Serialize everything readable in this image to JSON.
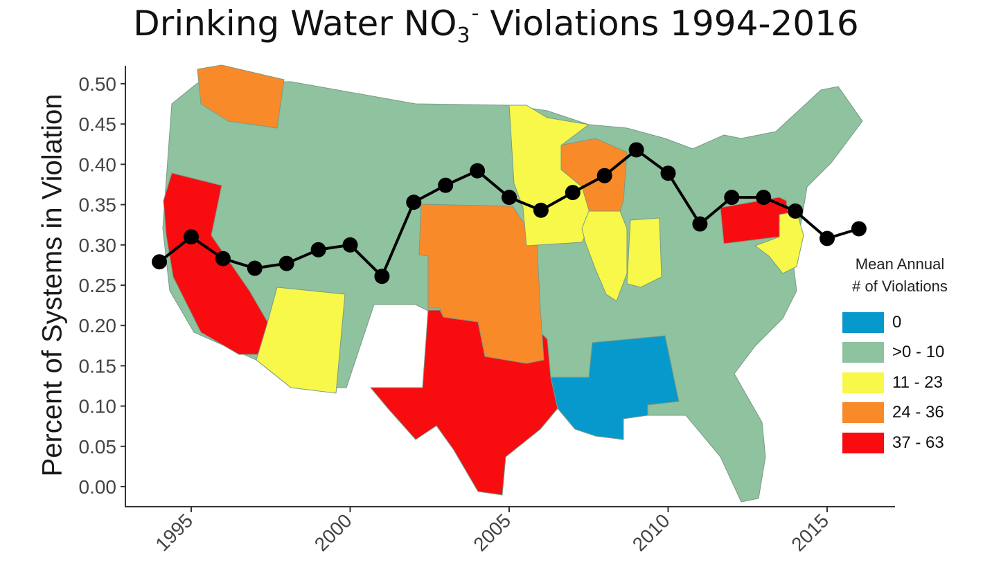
{
  "title": {
    "main": "Drinking Water NO",
    "sub": "3",
    "sup": "-",
    "rest": " Violations 1994-2016"
  },
  "colors": {
    "blue": "#0899cc",
    "green": "#8fc29f",
    "yellow": "#f8f84a",
    "orange": "#f98a2a",
    "red": "#f80c10",
    "line": "#000000"
  },
  "legend": {
    "title_line1": "Mean Annual",
    "title_line2": "# of Violations",
    "items": [
      {
        "label": "0",
        "color": "#0899cc"
      },
      {
        "label": ">0 - 10",
        "color": "#8fc29f"
      },
      {
        "label": "11 - 23",
        "color": "#f8f84a"
      },
      {
        "label": "24 - 36",
        "color": "#f98a2a"
      },
      {
        "label": "37 - 63",
        "color": "#f80c10"
      }
    ]
  },
  "chart_data": {
    "type": "line",
    "title": "Drinking Water NO3- Violations 1994-2016",
    "xlabel": "",
    "ylabel": "Percent of Systems in Violation",
    "xlim": [
      1993,
      2017
    ],
    "ylim": [
      0,
      0.5
    ],
    "x_ticks": [
      1995,
      2000,
      2005,
      2010,
      2015
    ],
    "y_ticks": [
      0.0,
      0.05,
      0.1,
      0.15,
      0.2,
      0.25,
      0.3,
      0.35,
      0.4,
      0.45,
      0.5
    ],
    "y_tick_labels": [
      "0.00",
      "0.05",
      "0.10",
      "0.15",
      "0.20",
      "0.25",
      "0.30",
      "0.35",
      "0.40",
      "0.45",
      "0.50"
    ],
    "grid": false,
    "legend_position": "right",
    "series": [
      {
        "x": [
          1994,
          1995,
          1996,
          1997,
          1998,
          1999,
          2000,
          2001,
          2002,
          2003,
          2004,
          2005,
          2006,
          2007,
          2008,
          2009,
          2010,
          2011,
          2012,
          2013,
          2014,
          2015,
          2016
        ],
        "y": [
          0.279,
          0.31,
          0.283,
          0.271,
          0.277,
          0.294,
          0.3,
          0.261,
          0.353,
          0.374,
          0.392,
          0.359,
          0.343,
          0.365,
          0.386,
          0.418,
          0.389,
          0.326,
          0.359,
          0.359,
          0.342,
          0.308,
          0.32
        ]
      }
    ],
    "background_map": {
      "description": "Choropleth of the contiguous United States behind the line, colored by mean annual number of violations",
      "legend_title": "Mean Annual # of Violations"
    }
  }
}
